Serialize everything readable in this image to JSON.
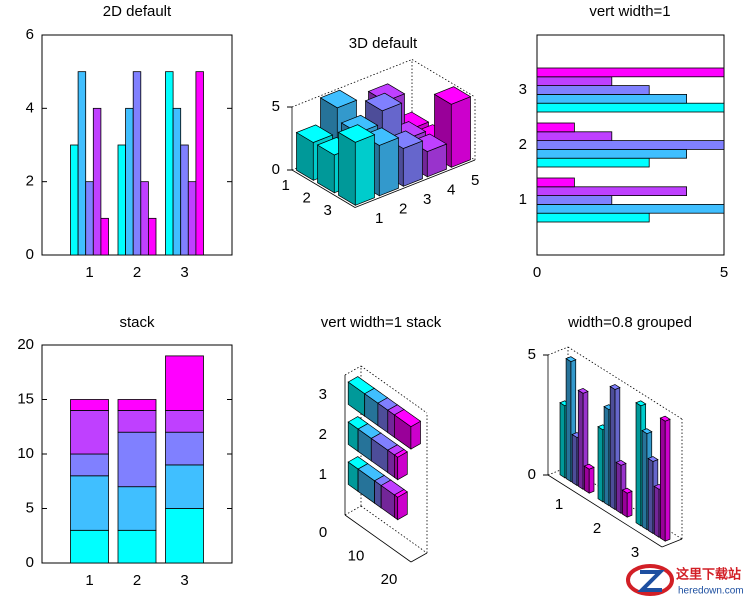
{
  "chart_data": [
    {
      "type": "bar",
      "title": "2D default",
      "categories": [
        "1",
        "2",
        "3"
      ],
      "series": [
        {
          "color": "#00ffff",
          "values": [
            3,
            3,
            5
          ]
        },
        {
          "color": "#40bfff",
          "values": [
            5,
            4,
            4
          ]
        },
        {
          "color": "#8080ff",
          "values": [
            2,
            5,
            3
          ]
        },
        {
          "color": "#bf40ff",
          "values": [
            4,
            2,
            2
          ]
        },
        {
          "color": "#ff00ff",
          "values": [
            1,
            1,
            5
          ]
        }
      ],
      "ylim": [
        0,
        6
      ],
      "yticks": [
        0,
        2,
        4,
        6
      ]
    },
    {
      "type": "bar3",
      "title": "3D default",
      "categories": [
        "1",
        "2",
        "3"
      ],
      "series": [
        {
          "color": "#00ffff",
          "values": [
            3,
            3,
            5
          ]
        },
        {
          "color": "#40bfff",
          "values": [
            5,
            4,
            4
          ]
        },
        {
          "color": "#8080ff",
          "values": [
            2,
            5,
            3
          ]
        },
        {
          "color": "#bf40ff",
          "values": [
            4,
            2,
            2
          ]
        },
        {
          "color": "#ff00ff",
          "values": [
            1,
            1,
            5
          ]
        }
      ],
      "xticks": [
        1,
        2,
        3,
        4,
        5
      ],
      "zlim": [
        0,
        5
      ],
      "zticks": [
        0,
        5
      ]
    },
    {
      "type": "barh",
      "title": "vert width=1",
      "categories": [
        "1",
        "2",
        "3"
      ],
      "bar_width": 1,
      "series": [
        {
          "color": "#00ffff",
          "values": [
            3,
            3,
            5
          ]
        },
        {
          "color": "#40bfff",
          "values": [
            5,
            4,
            4
          ]
        },
        {
          "color": "#8080ff",
          "values": [
            2,
            5,
            3
          ]
        },
        {
          "color": "#bf40ff",
          "values": [
            4,
            2,
            2
          ]
        },
        {
          "color": "#ff00ff",
          "values": [
            1,
            1,
            5
          ]
        }
      ],
      "xlim": [
        0,
        5
      ],
      "xticks": [
        0,
        5
      ]
    },
    {
      "type": "bar",
      "stacked": true,
      "title": "stack",
      "categories": [
        "1",
        "2",
        "3"
      ],
      "series": [
        {
          "color": "#00ffff",
          "values": [
            3,
            3,
            5
          ]
        },
        {
          "color": "#40bfff",
          "values": [
            5,
            4,
            4
          ]
        },
        {
          "color": "#8080ff",
          "values": [
            2,
            5,
            3
          ]
        },
        {
          "color": "#bf40ff",
          "values": [
            4,
            2,
            2
          ]
        },
        {
          "color": "#ff00ff",
          "values": [
            1,
            1,
            5
          ]
        }
      ],
      "ylim": [
        0,
        20
      ],
      "yticks": [
        0,
        5,
        10,
        15,
        20
      ]
    },
    {
      "type": "bar3h",
      "stacked": true,
      "title": "vert width=1 stack",
      "categories": [
        "1",
        "2",
        "3"
      ],
      "bar_width": 1,
      "series": [
        {
          "color": "#00ffff",
          "values": [
            3,
            3,
            5
          ]
        },
        {
          "color": "#40bfff",
          "values": [
            5,
            4,
            4
          ]
        },
        {
          "color": "#8080ff",
          "values": [
            2,
            5,
            3
          ]
        },
        {
          "color": "#bf40ff",
          "values": [
            4,
            2,
            2
          ]
        },
        {
          "color": "#ff00ff",
          "values": [
            1,
            1,
            5
          ]
        }
      ],
      "xlim": [
        0,
        20
      ],
      "xticks": [
        0,
        10,
        20
      ]
    },
    {
      "type": "bar3",
      "grouped": true,
      "title": "width=0.8 grouped",
      "categories": [
        "1",
        "2",
        "3"
      ],
      "bar_width": 0.8,
      "series": [
        {
          "color": "#00ffff",
          "values": [
            3,
            3,
            5
          ]
        },
        {
          "color": "#40bfff",
          "values": [
            5,
            4,
            4
          ]
        },
        {
          "color": "#8080ff",
          "values": [
            2,
            5,
            3
          ]
        },
        {
          "color": "#bf40ff",
          "values": [
            4,
            2,
            2
          ]
        },
        {
          "color": "#ff00ff",
          "values": [
            1,
            1,
            5
          ]
        }
      ],
      "zlim": [
        0,
        5
      ],
      "zticks": [
        0,
        5
      ]
    }
  ],
  "watermark": {
    "title": "这里下载站",
    "url": "heredown.com"
  }
}
